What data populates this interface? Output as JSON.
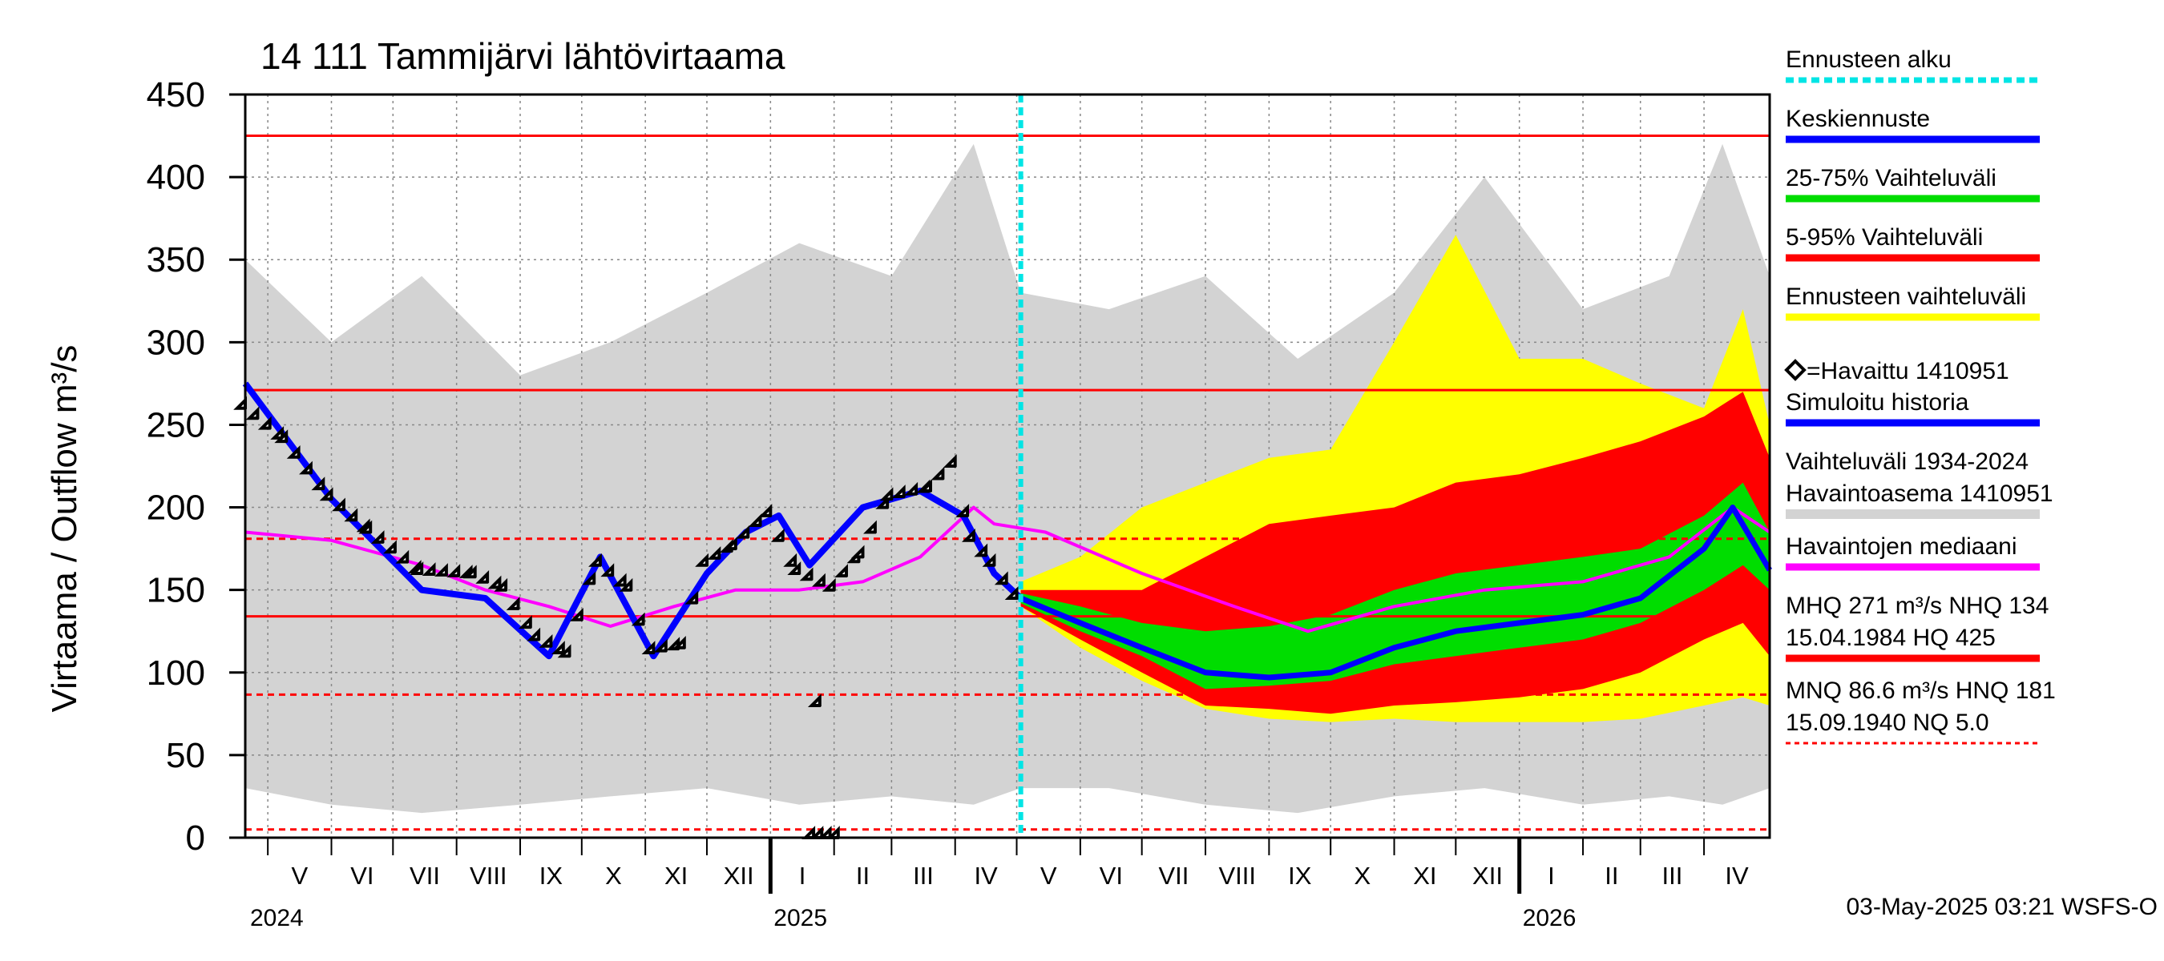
{
  "chart_data": {
    "type": "area",
    "title": "14 111 Tammijärvi lähtövirtaama",
    "ylabel": "Virtaama / Outflow    m³/s",
    "ylim": [
      0,
      450
    ],
    "yticks": [
      0,
      50,
      100,
      150,
      200,
      250,
      300,
      350,
      400,
      450
    ],
    "x_range": [
      "2024-04-20",
      "2026-05-03"
    ],
    "forecast_start": "2025-05-03",
    "months": [
      {
        "label": "V",
        "start": "2024-05-01"
      },
      {
        "label": "VI",
        "start": "2024-06-01"
      },
      {
        "label": "VII",
        "start": "2024-07-01"
      },
      {
        "label": "VIII",
        "start": "2024-08-01"
      },
      {
        "label": "IX",
        "start": "2024-09-01"
      },
      {
        "label": "X",
        "start": "2024-10-01"
      },
      {
        "label": "XI",
        "start": "2024-11-01"
      },
      {
        "label": "XII",
        "start": "2024-12-01"
      },
      {
        "label": "I",
        "start": "2025-01-01"
      },
      {
        "label": "II",
        "start": "2025-02-01"
      },
      {
        "label": "III",
        "start": "2025-03-01"
      },
      {
        "label": "IV",
        "start": "2025-04-01"
      },
      {
        "label": "V",
        "start": "2025-05-01"
      },
      {
        "label": "VI",
        "start": "2025-06-01"
      },
      {
        "label": "VII",
        "start": "2025-07-01"
      },
      {
        "label": "VIII",
        "start": "2025-08-01"
      },
      {
        "label": "IX",
        "start": "2025-09-01"
      },
      {
        "label": "X",
        "start": "2025-10-01"
      },
      {
        "label": "XI",
        "start": "2025-11-01"
      },
      {
        "label": "XII",
        "start": "2025-12-01"
      },
      {
        "label": "I",
        "start": "2026-01-01"
      },
      {
        "label": "II",
        "start": "2026-02-01"
      },
      {
        "label": "III",
        "start": "2026-03-01"
      },
      {
        "label": "IV",
        "start": "2026-04-01"
      }
    ],
    "years": [
      {
        "label": "2024",
        "start": "2024-04-20"
      },
      {
        "label": "2025",
        "start": "2025-01-01"
      },
      {
        "label": "2026",
        "start": "2026-01-01"
      }
    ],
    "reference_lines": [
      {
        "label": "HQ",
        "value": 425,
        "style": "solid"
      },
      {
        "label": "MHQ",
        "value": 271,
        "style": "solid"
      },
      {
        "label": "HNQ",
        "value": 181,
        "style": "dashed"
      },
      {
        "label": "NHQ",
        "value": 134,
        "style": "solid"
      },
      {
        "label": "MNQ",
        "value": 86.6,
        "style": "dashed"
      },
      {
        "label": "NQ",
        "value": 5.0,
        "style": "dashed"
      }
    ],
    "history_band": {
      "x": [
        "2024-04-20",
        "2024-06-01",
        "2024-07-15",
        "2024-09-01",
        "2024-10-15",
        "2024-12-01",
        "2025-01-15",
        "2025-03-01",
        "2025-04-10",
        "2025-05-03",
        "2025-06-15",
        "2025-08-01",
        "2025-09-15",
        "2025-11-01",
        "2025-12-15",
        "2026-02-01",
        "2026-03-15",
        "2026-04-10",
        "2026-05-03"
      ],
      "low": [
        30,
        20,
        15,
        20,
        25,
        30,
        20,
        25,
        20,
        30,
        30,
        20,
        15,
        25,
        30,
        20,
        25,
        20,
        30
      ],
      "high": [
        350,
        300,
        340,
        280,
        300,
        330,
        360,
        340,
        420,
        330,
        320,
        340,
        290,
        330,
        400,
        320,
        340,
        420,
        340
      ]
    },
    "forecast_5_95": {
      "x": [
        "2025-05-03",
        "2025-06-01",
        "2025-07-01",
        "2025-08-01",
        "2025-09-01",
        "2025-10-01",
        "2025-11-01",
        "2025-12-01",
        "2026-01-01",
        "2026-02-01",
        "2026-03-01",
        "2026-04-01",
        "2026-04-20",
        "2026-05-03"
      ],
      "low": [
        140,
        120,
        100,
        80,
        78,
        75,
        80,
        82,
        85,
        90,
        100,
        120,
        130,
        110
      ],
      "high": [
        150,
        150,
        150,
        170,
        190,
        195,
        200,
        215,
        220,
        230,
        240,
        255,
        270,
        230
      ]
    },
    "forecast_25_75": {
      "x": [
        "2025-05-03",
        "2025-06-01",
        "2025-07-01",
        "2025-08-01",
        "2025-09-01",
        "2025-10-01",
        "2025-11-01",
        "2025-12-01",
        "2026-01-01",
        "2026-02-01",
        "2026-03-01",
        "2026-04-01",
        "2026-04-20",
        "2026-05-03"
      ],
      "low": [
        142,
        125,
        110,
        90,
        92,
        95,
        105,
        110,
        115,
        120,
        130,
        150,
        165,
        150
      ],
      "high": [
        148,
        140,
        130,
        125,
        128,
        135,
        150,
        160,
        165,
        170,
        175,
        195,
        215,
        185
      ]
    },
    "forecast_envelope": {
      "x": [
        "2025-05-03",
        "2025-06-01",
        "2025-07-01",
        "2025-08-01",
        "2025-09-01",
        "2025-10-01",
        "2025-11-01",
        "2025-12-01",
        "2026-01-01",
        "2026-02-01",
        "2026-03-01",
        "2026-04-01",
        "2026-04-20",
        "2026-05-03"
      ],
      "low": [
        140,
        115,
        95,
        78,
        72,
        70,
        72,
        70,
        70,
        70,
        72,
        80,
        85,
        80
      ],
      "high": [
        155,
        170,
        200,
        215,
        230,
        235,
        300,
        365,
        290,
        290,
        275,
        260,
        320,
        250
      ]
    },
    "series": [
      {
        "name": "Keskiennuste",
        "x": [
          "2025-05-03",
          "2025-06-01",
          "2025-07-01",
          "2025-08-01",
          "2025-09-01",
          "2025-10-01",
          "2025-11-01",
          "2025-12-01",
          "2026-01-01",
          "2026-02-01",
          "2026-03-01",
          "2026-04-01",
          "2026-04-15",
          "2026-05-03"
        ],
        "values": [
          145,
          130,
          115,
          100,
          97,
          100,
          115,
          125,
          130,
          135,
          145,
          175,
          200,
          162
        ]
      },
      {
        "name": "Simuloitu historia",
        "x": [
          "2024-04-20",
          "2024-06-01",
          "2024-07-15",
          "2024-08-15",
          "2024-09-15",
          "2024-10-10",
          "2024-11-05",
          "2024-12-01",
          "2024-12-20",
          "2025-01-05",
          "2025-01-20",
          "2025-02-15",
          "2025-03-15",
          "2025-04-05",
          "2025-04-20",
          "2025-05-03"
        ],
        "values": [
          275,
          205,
          150,
          145,
          110,
          170,
          110,
          160,
          185,
          195,
          165,
          200,
          210,
          195,
          160,
          145
        ]
      },
      {
        "name": "Havaintojen mediaani",
        "x": [
          "2024-04-20",
          "2024-06-01",
          "2024-07-15",
          "2024-08-15",
          "2024-09-15",
          "2024-10-15",
          "2024-11-15",
          "2024-12-15",
          "2025-01-15",
          "2025-02-15",
          "2025-03-15",
          "2025-04-10",
          "2025-04-20",
          "2025-05-15",
          "2025-07-01",
          "2025-08-15",
          "2025-09-20",
          "2025-11-01",
          "2025-12-15",
          "2026-02-01",
          "2026-03-15",
          "2026-04-15",
          "2026-05-03"
        ],
        "values": [
          185,
          180,
          165,
          150,
          140,
          128,
          140,
          150,
          150,
          155,
          170,
          200,
          190,
          185,
          160,
          140,
          125,
          140,
          150,
          155,
          170,
          200,
          185
        ]
      },
      {
        "name": "=Havaittu 1410951",
        "x": [
          "2024-04-20",
          "2024-05-10",
          "2024-06-01",
          "2024-06-20",
          "2024-07-15",
          "2024-08-10",
          "2024-08-25",
          "2024-09-10",
          "2024-09-25",
          "2024-10-10",
          "2024-10-25",
          "2024-11-05",
          "2024-11-20",
          "2024-12-01",
          "2024-12-15",
          "2025-01-01",
          "2025-01-15",
          "2025-02-01",
          "2025-02-15",
          "2025-03-01",
          "2025-03-20",
          "2025-04-01",
          "2025-04-10",
          "2025-04-20",
          "2025-05-01"
        ],
        "values": [
          260,
          240,
          205,
          185,
          160,
          158,
          150,
          120,
          110,
          165,
          150,
          112,
          115,
          165,
          175,
          195,
          160,
          150,
          170,
          205,
          210,
          225,
          180,
          165,
          145
        ]
      }
    ],
    "observed_outliers": [
      {
        "x": "2025-01-25",
        "value": 80
      },
      {
        "x": "2025-01-22",
        "value": 0
      },
      {
        "x": "2025-01-26",
        "value": 0
      },
      {
        "x": "2025-01-30",
        "value": 0
      },
      {
        "x": "2025-02-03",
        "value": 0
      }
    ],
    "legend": [
      {
        "label": "Ennusteen alku",
        "color": "#00e5e5",
        "style": "dashed"
      },
      {
        "label": "Keskiennuste",
        "color": "#0000ff",
        "style": "solid"
      },
      {
        "label": "25-75% Vaihteluväli",
        "color": "#00dd00",
        "style": "solid"
      },
      {
        "label": "5-95% Vaihteluväli",
        "color": "#ff0000",
        "style": "solid"
      },
      {
        "label": "Ennusteen vaihteluväli",
        "color": "#ffff00",
        "style": "solid"
      },
      {
        "label": "=Havaittu 1410951",
        "color": "#000000",
        "style": "marker"
      },
      {
        "label": "Simuloitu historia",
        "color": "#0000ff",
        "style": "solid"
      },
      {
        "label": "Vaihteluväli 1934-2024",
        "label2": " Havaintoasema 1410951",
        "color": "#d3d3d3",
        "style": "solid"
      },
      {
        "label": "Havaintojen mediaani",
        "color": "#ff00ff",
        "style": "solid"
      },
      {
        "label": "MHQ  271 m³/s NHQ  134",
        "label2": "15.04.1984 HQ  425",
        "color": "#ff0000",
        "style": "solid"
      },
      {
        "label": "MNQ 86.6 m³/s HNQ  181",
        "label2": "15.09.1940 NQ  5.0",
        "color": "#ff0000",
        "style": "dashed"
      }
    ],
    "grid": true,
    "legend_placement": "right",
    "colors": {
      "history_band": "#d3d3d3",
      "envelope": "#ffff00",
      "p5_95": "#ff0000",
      "p25_75": "#00dd00",
      "mean_forecast": "#0000ff",
      "simulated": "#0000ff",
      "median": "#ff00ff",
      "observed": "#000000",
      "forecast_start": "#00e5e5",
      "reference": "#ff0000"
    }
  },
  "footer": {
    "timestamp": "03-May-2025 03:21 WSFS-O"
  }
}
